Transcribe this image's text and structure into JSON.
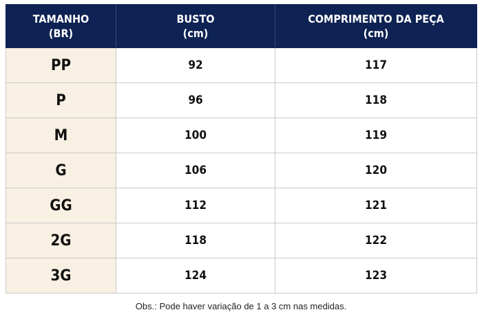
{
  "table": {
    "headers": [
      {
        "line1": "TAMANHO",
        "line2": "(BR)"
      },
      {
        "line1": "BUSTO",
        "line2": "(cm)"
      },
      {
        "line1": "COMPRIMENTO DA PEÇA",
        "line2": "(cm)"
      }
    ],
    "rows": [
      {
        "size": "PP",
        "bust": "92",
        "length": "117"
      },
      {
        "size": "P",
        "bust": "96",
        "length": "118"
      },
      {
        "size": "M",
        "bust": "100",
        "length": "119"
      },
      {
        "size": "G",
        "bust": "106",
        "length": "120"
      },
      {
        "size": "GG",
        "bust": "112",
        "length": "121"
      },
      {
        "size": "2G",
        "bust": "118",
        "length": "122"
      },
      {
        "size": "3G",
        "bust": "124",
        "length": "123"
      }
    ]
  },
  "colors": {
    "header_background": "#0e2253",
    "size_column_background": "#f8f0e3"
  },
  "note": "Obs.: Pode haver variação de 1 a 3 cm nas medidas."
}
